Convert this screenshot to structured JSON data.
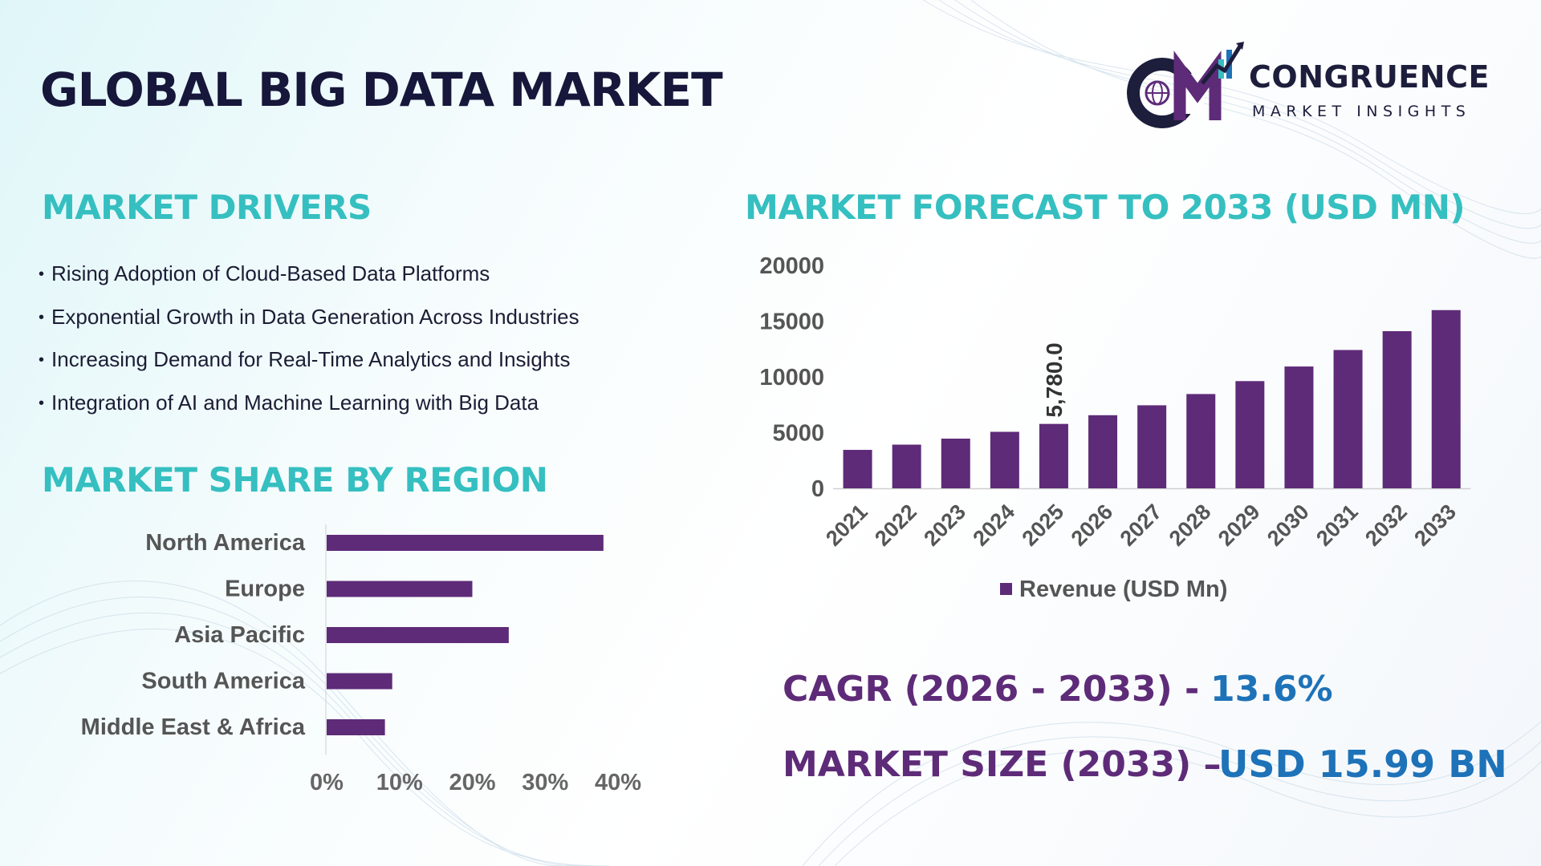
{
  "title": "GLOBAL BIG DATA MARKET",
  "logo": {
    "initials": "CM",
    "name": "CONGRUENCE",
    "tagline": "MARKET INSIGHTS"
  },
  "drivers": {
    "title": "MARKET DRIVERS",
    "items": [
      "Rising Adoption of Cloud-Based Data Platforms",
      "Exponential Growth in Data Generation Across Industries",
      "Increasing Demand for Real-Time Analytics and Insights",
      "Integration of AI and Machine Learning with Big Data"
    ]
  },
  "region": {
    "title": "MARKET SHARE BY REGION"
  },
  "forecast": {
    "title": "MARKET FORECAST TO 2033 (USD MN)"
  },
  "stats": {
    "cagr_label": "CAGR (2026 - 2033) -",
    "cagr_value": "13.6%",
    "size_label": "MARKET SIZE (2033) –",
    "size_value": "USD 15.99 BN"
  },
  "colors": {
    "bar": "#5e2b78",
    "accent": "#35bfc0",
    "value_blue": "#1e72b8",
    "title": "#16173a"
  },
  "chart_data": [
    {
      "type": "bar",
      "orientation": "horizontal",
      "categories": [
        "North America",
        "Europe",
        "Asia Pacific",
        "South America",
        "Middle East & Africa"
      ],
      "values": [
        38,
        20,
        25,
        9,
        8
      ],
      "xticks": [
        "0%",
        "10%",
        "20%",
        "30%",
        "40%"
      ],
      "xlim": [
        0,
        40
      ],
      "grid": false,
      "legend": "none"
    },
    {
      "type": "bar",
      "categories": [
        "2021",
        "2022",
        "2023",
        "2024",
        "2025",
        "2026",
        "2027",
        "2028",
        "2029",
        "2030",
        "2031",
        "2032",
        "2033"
      ],
      "series": [
        {
          "name": "Revenue (USD Mn)",
          "values": [
            3450,
            3920,
            4460,
            5070,
            5780,
            6560,
            7450,
            8460,
            9620,
            10930,
            12410,
            14100,
            15990
          ]
        }
      ],
      "yticks": [
        "0",
        "5000",
        "10000",
        "15000",
        "20000"
      ],
      "ylim": [
        0,
        20000
      ],
      "data_labels": [
        {
          "category": "2025",
          "text": "5,780.0"
        }
      ],
      "grid": false,
      "legend": "bottom"
    }
  ]
}
